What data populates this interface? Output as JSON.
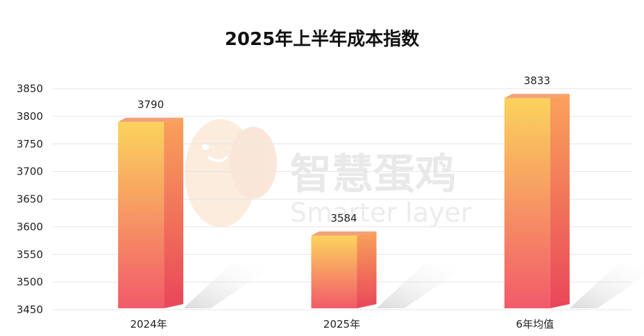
{
  "chart_data": {
    "type": "bar",
    "title": "2025年上半年成本指数",
    "categories": [
      "2024年",
      "2025年",
      "6年均值"
    ],
    "values": [
      3790,
      3584,
      3833
    ],
    "data_labels": [
      "3790",
      "3584",
      "3833"
    ],
    "ylim": [
      3450,
      3850
    ],
    "yticks": [
      3450,
      3500,
      3550,
      3600,
      3650,
      3700,
      3750,
      3800,
      3850
    ],
    "xlabel": "",
    "ylabel": "",
    "grid": true,
    "bar_style": "3d-gradient",
    "colors": {
      "bar_top": "#fbd35c",
      "bar_bottom": "#f25a6a",
      "side_top": "#f9a25a",
      "side_bottom": "#e9465a",
      "grid": "#e6e6e6"
    }
  },
  "watermark": {
    "cn": "智慧蛋鸡",
    "en": "Smarter layer"
  }
}
